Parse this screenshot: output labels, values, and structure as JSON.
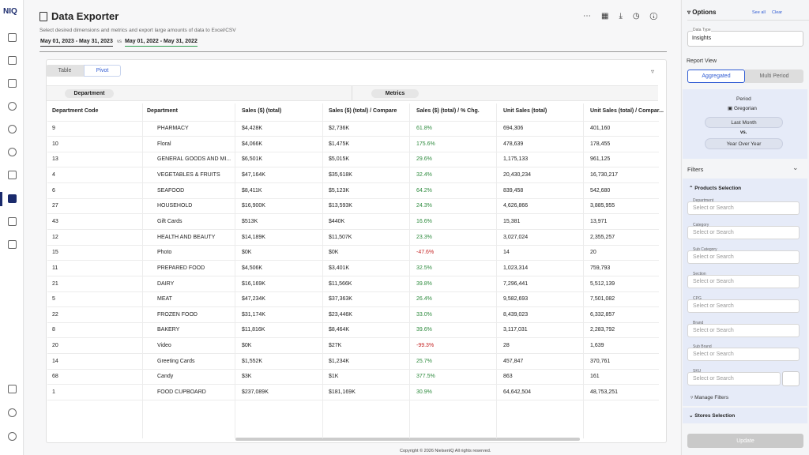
{
  "app": {
    "logo": "NIQ"
  },
  "header": {
    "title": "Data Exporter",
    "subtitle": "Select desired dimensions and metrics and export large amounts of data to Excel/CSV",
    "date_range": "May 01, 2023 - May 31, 2023",
    "vs": "vs",
    "compare_range": "May 01, 2022 - May 31, 2022"
  },
  "tabs": [
    "Table",
    "Pivot"
  ],
  "pivot": {
    "rows_label": "Department",
    "metrics_label": "Metrics"
  },
  "table": {
    "columns": [
      "Department Code",
      "Department",
      "Sales ($) (total)",
      "Sales ($) (total) / Compare",
      "Sales ($) (total) / % Chg.",
      "Unit Sales (total)",
      "Unit Sales (total) / Compar..."
    ],
    "rows": [
      [
        "9",
        "PHARMACY",
        "$4,428K",
        "$2,736K",
        "61.8%",
        "694,306",
        "401,160"
      ],
      [
        "10",
        "Floral",
        "$4,066K",
        "$1,475K",
        "175.6%",
        "478,639",
        "178,455"
      ],
      [
        "13",
        "GENERAL GOODS AND MI...",
        "$6,501K",
        "$5,015K",
        "29.6%",
        "1,175,133",
        "961,125"
      ],
      [
        "4",
        "VEGETABLES & FRUITS",
        "$47,164K",
        "$35,618K",
        "32.4%",
        "20,430,234",
        "16,730,217"
      ],
      [
        "6",
        "SEAFOOD",
        "$8,411K",
        "$5,123K",
        "64.2%",
        "839,458",
        "542,680"
      ],
      [
        "27",
        "HOUSEHOLD",
        "$16,900K",
        "$13,593K",
        "24.3%",
        "4,626,866",
        "3,885,955"
      ],
      [
        "43",
        "Gift Cards",
        "$513K",
        "$440K",
        "16.6%",
        "15,381",
        "13,971"
      ],
      [
        "12",
        "HEALTH AND BEAUTY",
        "$14,189K",
        "$11,507K",
        "23.3%",
        "3,027,024",
        "2,355,257"
      ],
      [
        "15",
        "Photo",
        "$0K",
        "$0K",
        "-47.6%",
        "14",
        "20"
      ],
      [
        "11",
        "PREPARED FOOD",
        "$4,506K",
        "$3,401K",
        "32.5%",
        "1,023,314",
        "759,793"
      ],
      [
        "21",
        "DAIRY",
        "$16,169K",
        "$11,566K",
        "39.8%",
        "7,296,441",
        "5,512,139"
      ],
      [
        "5",
        "MEAT",
        "$47,234K",
        "$37,363K",
        "26.4%",
        "9,582,693",
        "7,501,082"
      ],
      [
        "22",
        "FROZEN FOOD",
        "$31,174K",
        "$23,446K",
        "33.0%",
        "8,439,023",
        "6,332,857"
      ],
      [
        "8",
        "BAKERY",
        "$11,816K",
        "$8,464K",
        "39.6%",
        "3,117,031",
        "2,283,792"
      ],
      [
        "20",
        "Video",
        "$0K",
        "$27K",
        "-99.3%",
        "28",
        "1,639"
      ],
      [
        "14",
        "Greeting Cards",
        "$1,552K",
        "$1,234K",
        "25.7%",
        "457,847",
        "370,761"
      ],
      [
        "68",
        "Candy",
        "$3K",
        "$1K",
        "377.5%",
        "863",
        "161"
      ],
      [
        "1",
        "FOOD CUPBOARD",
        "$237,089K",
        "$181,169K",
        "30.9%",
        "64,642,504",
        "48,753,251"
      ]
    ]
  },
  "footer": "Copyright © 2026 NielsenIQ All rights reserved.",
  "options": {
    "title": "Options",
    "see_all": "See all",
    "clear": "Clear",
    "data_type_label": "Data Type",
    "data_type_value": "Insights",
    "report_view": "Report View",
    "views": [
      "Aggregated",
      "Multi Period"
    ],
    "period_label": "Period",
    "calendar": "Gregorian",
    "period": "Last Month",
    "vs": "vs.",
    "compare": "Year Over Year",
    "filters_title": "Filters",
    "products_selection": "Products Selection",
    "filters": [
      "Department",
      "Category",
      "Sub Category",
      "Section",
      "CPG",
      "Brand",
      "Sub Brand",
      "SKU"
    ],
    "placeholder": "Select or Search",
    "manage_filters": "Manage Filters",
    "stores_selection": "Stores Selection",
    "update": "Update"
  }
}
